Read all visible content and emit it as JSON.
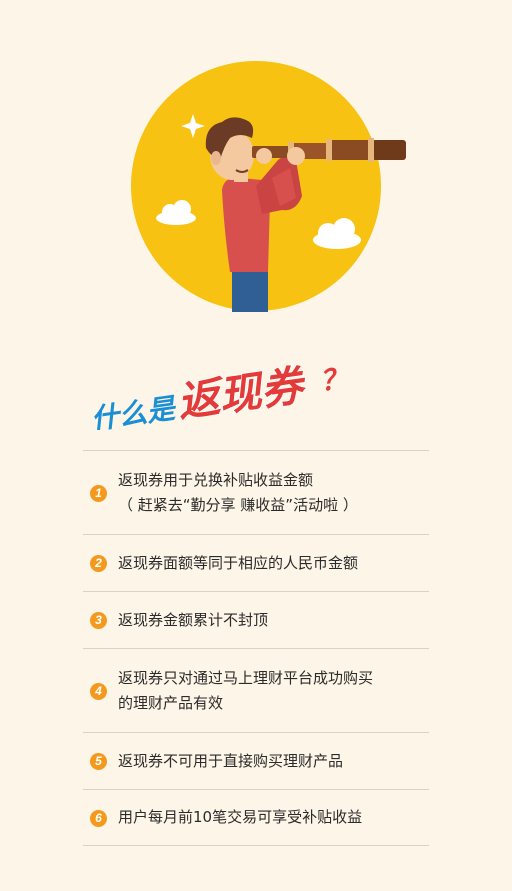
{
  "title": {
    "part1": "什么是",
    "part2": "返现券",
    "part3": "？"
  },
  "colors": {
    "background": "#fdf5e7",
    "circle": "#f7c211",
    "title_blue": "#1a8fd6",
    "title_red": "#e33a3a",
    "number_badge": "#f39a1e",
    "divider": "#d9d2c5",
    "text": "#2b2b2b"
  },
  "rules": [
    {
      "number": "1",
      "lines": [
        "返现券用于兑换补贴收益金额",
        "（ 赶紧去“勤分享 赚收益”活动啦 ）"
      ]
    },
    {
      "number": "2",
      "lines": [
        "返现券面额等同于相应的人民币金额"
      ]
    },
    {
      "number": "3",
      "lines": [
        "返现券金额累计不封顶"
      ]
    },
    {
      "number": "4",
      "lines": [
        "返现券只对通过马上理财平台成功购买",
        "的理财产品有效"
      ]
    },
    {
      "number": "5",
      "lines": [
        "返现券不可用于直接购买理财产品"
      ]
    },
    {
      "number": "6",
      "lines": [
        "用户每月前10笔交易可享受补贴收益"
      ]
    }
  ]
}
